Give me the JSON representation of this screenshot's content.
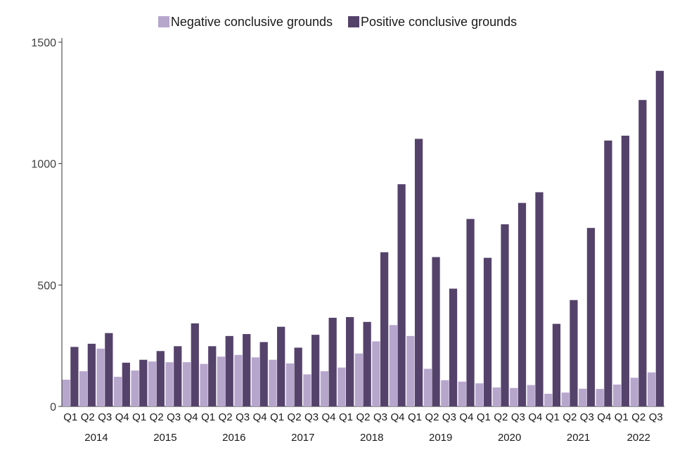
{
  "chart_data": {
    "type": "bar",
    "title": "",
    "xlabel": "",
    "ylabel": "",
    "ylim": [
      0,
      1500
    ],
    "yticks": [
      0,
      500,
      1000,
      1500
    ],
    "legend_position": "top-center",
    "years": [
      "2014",
      "2015",
      "2016",
      "2017",
      "2018",
      "2019",
      "2020",
      "2021",
      "2022"
    ],
    "categories": [
      "Q1",
      "Q2",
      "Q3",
      "Q4",
      "Q1",
      "Q2",
      "Q3",
      "Q4",
      "Q1",
      "Q2",
      "Q3",
      "Q4",
      "Q1",
      "Q2",
      "Q3",
      "Q4",
      "Q1",
      "Q2",
      "Q3",
      "Q4",
      "Q1",
      "Q2",
      "Q3",
      "Q4",
      "Q1",
      "Q2",
      "Q3",
      "Q4",
      "Q1",
      "Q2",
      "Q3",
      "Q4",
      "Q1",
      "Q2",
      "Q3"
    ],
    "series": [
      {
        "name": "Negative conclusive grounds",
        "color": "#b7a6cc",
        "values": [
          110,
          145,
          238,
          122,
          148,
          185,
          182,
          182,
          175,
          205,
          212,
          202,
          192,
          177,
          132,
          145,
          160,
          218,
          268,
          335,
          290,
          155,
          108,
          102,
          95,
          78,
          76,
          88,
          52,
          57,
          73,
          72,
          90,
          118,
          140
        ]
      },
      {
        "name": "Positive conclusive grounds",
        "color": "#55426b",
        "values": [
          245,
          258,
          302,
          180,
          192,
          228,
          248,
          342,
          248,
          290,
          298,
          265,
          328,
          242,
          295,
          365,
          368,
          348,
          635,
          915,
          1102,
          615,
          485,
          772,
          612,
          750,
          838,
          882,
          340,
          438,
          735,
          1095,
          1115,
          1262,
          1382
        ]
      }
    ]
  }
}
